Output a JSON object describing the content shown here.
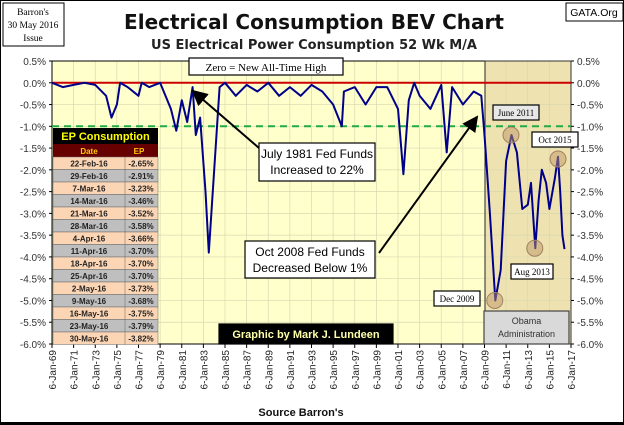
{
  "header": {
    "title": "Electrical Consumption BEV Chart",
    "subtitle": "US Electrical Power Consumption 52 Wk M/A",
    "issue_lines": [
      "Barron's",
      "30 May 2016",
      "Issue"
    ],
    "site": "GATA.Org",
    "credit": "Graphic by Mark J. Lundeen",
    "source": "Source Barron's"
  },
  "colors": {
    "plot_bg": "#FFFFCC",
    "obama_bg": "#EEE3B0",
    "series": "#00008B",
    "zero_line": "#CC0000",
    "dashed_line": "#22AA44",
    "table_header_bg": "#000000",
    "table_subheader_bg": "#660000",
    "row_peach": "#FCD5B4",
    "row_gray": "#BFBFBF"
  },
  "table": {
    "title": "EP Consumption",
    "columns": [
      "Date",
      "EP"
    ],
    "rows": [
      [
        "22-Feb-16",
        "-2.65%"
      ],
      [
        "29-Feb-16",
        "-2.91%"
      ],
      [
        "7-Mar-16",
        "-3.23%"
      ],
      [
        "14-Mar-16",
        "-3.46%"
      ],
      [
        "21-Mar-16",
        "-3.52%"
      ],
      [
        "28-Mar-16",
        "-3.58%"
      ],
      [
        "4-Apr-16",
        "-3.66%"
      ],
      [
        "11-Apr-16",
        "-3.70%"
      ],
      [
        "18-Apr-16",
        "-3.70%"
      ],
      [
        "25-Apr-16",
        "-3.70%"
      ],
      [
        "2-May-16",
        "-3.73%"
      ],
      [
        "9-May-16",
        "-3.68%"
      ],
      [
        "16-May-16",
        "-3.75%"
      ],
      [
        "23-May-16",
        "-3.79%"
      ],
      [
        "30-May-16",
        "-3.82%"
      ]
    ]
  },
  "annotations": {
    "zero_note": "Zero = New All-Time High",
    "july1981": [
      "July 1981 Fed Funds",
      "Increased to 22%"
    ],
    "oct2008": [
      "Oct 2008 Fed Funds",
      "Decreased Below 1%"
    ],
    "june2011": "June 2011",
    "oct2015": "Oct 2015",
    "dec2009": "Dec 2009",
    "aug2013": "Aug 2013",
    "obama": [
      "Obama",
      "Administration"
    ]
  },
  "chart_data": {
    "type": "line",
    "title": "Electrical Consumption BEV Chart",
    "subtitle": "US Electrical Power Consumption 52 Wk M/A",
    "xlabel": "Source Barron's",
    "xlim": [
      1969,
      2017
    ],
    "ylim": [
      -6.0,
      0.5
    ],
    "grid": true,
    "y_ticks": [
      "0.5%",
      "0.0%",
      "-0.5%",
      "-1.0%",
      "-1.5%",
      "-2.0%",
      "-2.5%",
      "-3.0%",
      "-3.5%",
      "-4.0%",
      "-4.5%",
      "-5.0%",
      "-5.5%",
      "-6.0%"
    ],
    "x_ticks": [
      "6-Jan-69",
      "6-Jan-71",
      "6-Jan-73",
      "6-Jan-75",
      "6-Jan-77",
      "6-Jan-79",
      "6-Jan-81",
      "6-Jan-83",
      "6-Jan-85",
      "6-Jan-87",
      "6-Jan-89",
      "6-Jan-91",
      "6-Jan-93",
      "6-Jan-95",
      "6-Jan-97",
      "6-Jan-99",
      "6-Jan-01",
      "6-Jan-03",
      "6-Jan-05",
      "6-Jan-07",
      "6-Jan-09",
      "6-Jan-11",
      "6-Jan-13",
      "6-Jan-15",
      "6-Jan-17"
    ],
    "reference_lines": [
      {
        "y": 0.0,
        "style": "solid"
      },
      {
        "y": -1.0,
        "style": "dashed"
      }
    ],
    "shaded_region": {
      "from": 2009.05,
      "to": 2017,
      "label": "Obama Administration"
    },
    "series": [
      {
        "points": [
          [
            1969,
            0
          ],
          [
            1970,
            -0.1
          ],
          [
            1971,
            -0.05
          ],
          [
            1972,
            0
          ],
          [
            1973,
            -0.05
          ],
          [
            1974,
            -0.3
          ],
          [
            1974.5,
            -0.8
          ],
          [
            1975,
            -0.5
          ],
          [
            1975.3,
            0
          ],
          [
            1976,
            -0.1
          ],
          [
            1977,
            -0.3
          ],
          [
            1977.3,
            0
          ],
          [
            1978,
            -0.1
          ],
          [
            1979,
            0
          ],
          [
            1980,
            -0.6
          ],
          [
            1980.5,
            -1.1
          ],
          [
            1981,
            -0.4
          ],
          [
            1981.5,
            -0.9
          ],
          [
            1982,
            -0.1
          ],
          [
            1982.3,
            -1.2
          ],
          [
            1982.7,
            -0.8
          ],
          [
            1983.2,
            -2.5
          ],
          [
            1983.5,
            -3.9
          ],
          [
            1984,
            -2.0
          ],
          [
            1984.5,
            -0.1
          ],
          [
            1985,
            0
          ],
          [
            1986,
            -0.3
          ],
          [
            1987,
            -0.05
          ],
          [
            1988,
            -0.2
          ],
          [
            1989,
            0
          ],
          [
            1990,
            -0.3
          ],
          [
            1991,
            -0.1
          ],
          [
            1992,
            -0.3
          ],
          [
            1993,
            -0.05
          ],
          [
            1994,
            -0.2
          ],
          [
            1995,
            -0.5
          ],
          [
            1995.8,
            -1.0
          ],
          [
            1996,
            -0.2
          ],
          [
            1997,
            -0.1
          ],
          [
            1998,
            -0.5
          ],
          [
            1999,
            -0.1
          ],
          [
            2000,
            -0.1
          ],
          [
            2001,
            -0.6
          ],
          [
            2001.5,
            -2.1
          ],
          [
            2002,
            -0.4
          ],
          [
            2002.5,
            0
          ],
          [
            2003,
            -0.3
          ],
          [
            2004,
            -0.6
          ],
          [
            2005,
            -0.05
          ],
          [
            2005.5,
            -1.6
          ],
          [
            2006,
            -0.1
          ],
          [
            2007,
            -0.5
          ],
          [
            2008,
            -0.2
          ],
          [
            2008.7,
            -0.3
          ],
          [
            2009,
            -1.2
          ],
          [
            2009.5,
            -3.0
          ],
          [
            2010,
            -5.0
          ],
          [
            2010.5,
            -4.3
          ],
          [
            2011,
            -1.8
          ],
          [
            2011.5,
            -1.2
          ],
          [
            2012,
            -1.6
          ],
          [
            2012.5,
            -2.9
          ],
          [
            2013,
            -2.8
          ],
          [
            2013.3,
            -2.3
          ],
          [
            2013.7,
            -3.8
          ],
          [
            2014,
            -2.7
          ],
          [
            2014.3,
            -2.0
          ],
          [
            2014.7,
            -2.3
          ],
          [
            2015,
            -2.9
          ],
          [
            2015.5,
            -2.2
          ],
          [
            2015.8,
            -1.7
          ],
          [
            2016,
            -2.5
          ],
          [
            2016.2,
            -3.5
          ],
          [
            2016.4,
            -3.82
          ]
        ]
      }
    ],
    "highlighted_points": [
      {
        "label": "June 2011",
        "x": 2011.45,
        "y": -1.2
      },
      {
        "label": "Oct 2015",
        "x": 2015.8,
        "y": -1.75
      },
      {
        "label": "Dec 2009",
        "x": 2009.95,
        "y": -5.0
      },
      {
        "label": "Aug 2013",
        "x": 2013.65,
        "y": -3.8
      }
    ]
  }
}
